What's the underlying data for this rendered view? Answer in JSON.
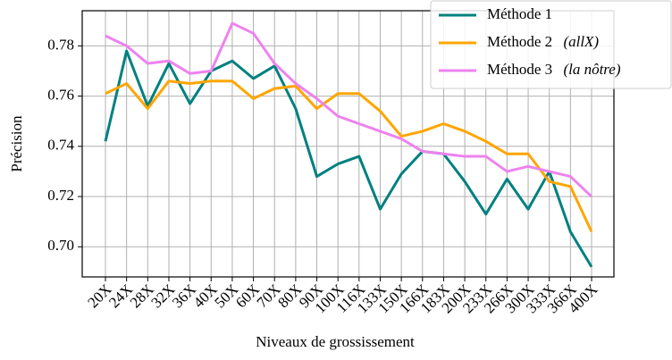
{
  "chart_data": {
    "type": "line",
    "xlabel": "Niveaux de grossissement",
    "ylabel": "Précision",
    "categories": [
      "20X",
      "24X",
      "28X",
      "32X",
      "36X",
      "40X",
      "50X",
      "60X",
      "70X",
      "80X",
      "90X",
      "100X",
      "116X",
      "133X",
      "150X",
      "166X",
      "183X",
      "200X",
      "233X",
      "266X",
      "300X",
      "333X",
      "366X",
      "400X"
    ],
    "series": [
      {
        "name": "Méthode 1",
        "color": "#008080",
        "values": [
          0.742,
          0.778,
          0.756,
          0.773,
          0.757,
          0.77,
          0.774,
          0.767,
          0.772,
          0.755,
          0.728,
          0.733,
          0.736,
          0.715,
          0.729,
          0.738,
          0.737,
          0.726,
          0.713,
          0.727,
          0.715,
          0.73,
          0.706,
          0.692
        ]
      },
      {
        "name": "Méthode 2 (allX)",
        "color": "#ffa500",
        "values": [
          0.761,
          0.765,
          0.755,
          0.766,
          0.765,
          0.766,
          0.766,
          0.759,
          0.763,
          0.764,
          0.755,
          0.761,
          0.761,
          0.754,
          0.744,
          0.746,
          0.749,
          0.746,
          0.742,
          0.737,
          0.737,
          0.726,
          0.724,
          0.706
        ]
      },
      {
        "name": "Méthode 3 (la nôtre)",
        "color": "#ee82ee",
        "values": [
          0.784,
          0.78,
          0.773,
          0.774,
          0.769,
          0.77,
          0.789,
          0.785,
          0.773,
          0.765,
          0.759,
          0.752,
          0.749,
          0.746,
          0.743,
          0.738,
          0.737,
          0.736,
          0.736,
          0.73,
          0.732,
          0.73,
          0.728,
          0.72
        ]
      }
    ],
    "ylim": [
      0.688,
      0.794
    ],
    "yticks": [
      {
        "value": 0.7,
        "label": "0.70"
      },
      0.72,
      0.74,
      0.76,
      0.78
    ],
    "grid": true,
    "legend": "upper right"
  }
}
